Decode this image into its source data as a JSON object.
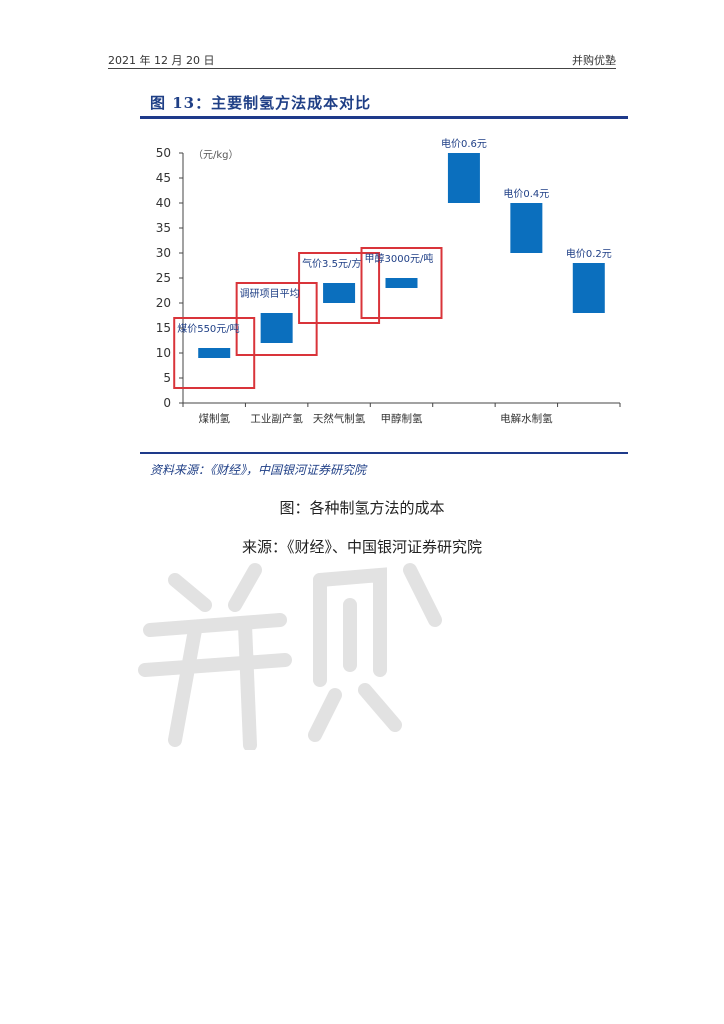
{
  "header": {
    "date": "2021 年 12 月 20 日",
    "brand": "并购优塾"
  },
  "figure": {
    "title": "图 13：主要制氢方法成本对比",
    "source": "资料来源：《财经》，中国银河证券研究院"
  },
  "caption": {
    "title": "图：各种制氢方法的成本",
    "source": "来源：《财经》、中国银河证券研究院"
  },
  "colors": {
    "bar": "#0b6fbe",
    "highlight": "#d9343a",
    "axis": "#444444",
    "title": "#1f3f86"
  },
  "chart_data": {
    "type": "bar",
    "subtype": "floating-range",
    "ylabel": "（元/kg）",
    "ylim": [
      0,
      50
    ],
    "yticks": [
      0,
      5,
      10,
      15,
      20,
      25,
      30,
      35,
      40,
      45,
      50
    ],
    "categories": [
      "煤制氢",
      "工业副产氢",
      "天然气制氢",
      "甲醇制氢",
      "电解水制氢"
    ],
    "bars": [
      {
        "low": 9,
        "high": 11,
        "label": "煤价550元/吨",
        "highlighted": true
      },
      {
        "low": 12,
        "high": 18,
        "label": "调研项目平均",
        "highlighted": true
      },
      {
        "low": 20,
        "high": 24,
        "label": "气价3.5元/方",
        "highlighted": true
      },
      {
        "low": 23,
        "high": 25,
        "label": "甲醇3000元/吨",
        "highlighted": true
      },
      {
        "low": 40,
        "high": 50,
        "label": "电价0.6元",
        "highlighted": false
      },
      {
        "low": 30,
        "high": 40,
        "label": "电价0.4元",
        "highlighted": false
      },
      {
        "low": 18,
        "high": 28,
        "label": "电价0.2元",
        "highlighted": false
      }
    ],
    "grid": false,
    "legend": "none"
  }
}
